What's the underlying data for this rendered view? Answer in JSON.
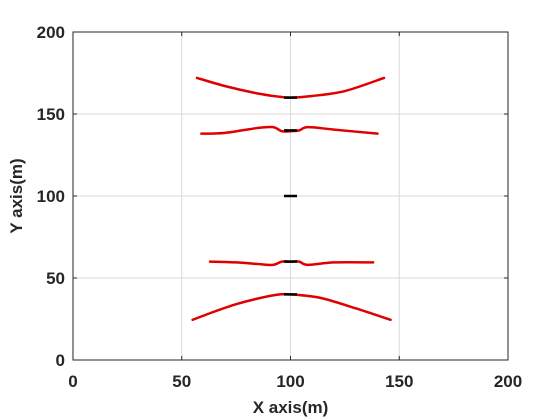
{
  "chart_data": {
    "type": "line",
    "xlabel": "X axis(m)",
    "ylabel": "Y axis(m)",
    "xlim": [
      0,
      200
    ],
    "ylim": [
      0,
      200
    ],
    "xticks": [
      0,
      50,
      100,
      150,
      200
    ],
    "yticks": [
      0,
      50,
      100,
      150,
      200
    ],
    "grid": true,
    "colors": {
      "curves": "#e00000",
      "segments": "#000000",
      "grid": "#d9d9d9",
      "axes": "#262626"
    },
    "series": [
      {
        "color": "#e00000",
        "points": [
          [
            57,
            172
          ],
          [
            70,
            167
          ],
          [
            85,
            162.5
          ],
          [
            95,
            160.5
          ],
          [
            100,
            160
          ],
          [
            110,
            161
          ],
          [
            125,
            164
          ],
          [
            143,
            172
          ]
        ]
      },
      {
        "color": "#e00000",
        "points": [
          [
            59,
            138
          ],
          [
            70,
            138.5
          ],
          [
            85,
            141.5
          ],
          [
            92,
            142
          ],
          [
            96,
            139.5
          ],
          [
            100,
            139.5
          ],
          [
            104,
            140
          ],
          [
            108,
            142
          ],
          [
            120,
            140.5
          ],
          [
            140,
            138
          ]
        ]
      },
      {
        "color": "#e00000",
        "points": [
          [
            63,
            60
          ],
          [
            75,
            59.5
          ],
          [
            85,
            58.5
          ],
          [
            92,
            58
          ],
          [
            96,
            60
          ],
          [
            100,
            60
          ],
          [
            104,
            60
          ],
          [
            108,
            58
          ],
          [
            120,
            59.5
          ],
          [
            138,
            59.5
          ]
        ]
      },
      {
        "color": "#e00000",
        "points": [
          [
            55,
            24.5
          ],
          [
            65,
            29.5
          ],
          [
            75,
            34
          ],
          [
            85,
            37.5
          ],
          [
            95,
            40
          ],
          [
            100,
            40
          ],
          [
            105,
            39.5
          ],
          [
            115,
            37.5
          ],
          [
            130,
            31.5
          ],
          [
            146,
            24.5
          ]
        ]
      }
    ],
    "segments": [
      {
        "color": "#000000",
        "x": [
          97,
          103
        ],
        "y": 160
      },
      {
        "color": "#000000",
        "x": [
          97,
          103
        ],
        "y": 140
      },
      {
        "color": "#000000",
        "x": [
          97,
          103
        ],
        "y": 100
      },
      {
        "color": "#000000",
        "x": [
          97,
          103
        ],
        "y": 60
      },
      {
        "color": "#000000",
        "x": [
          97,
          103
        ],
        "y": 40
      }
    ]
  }
}
